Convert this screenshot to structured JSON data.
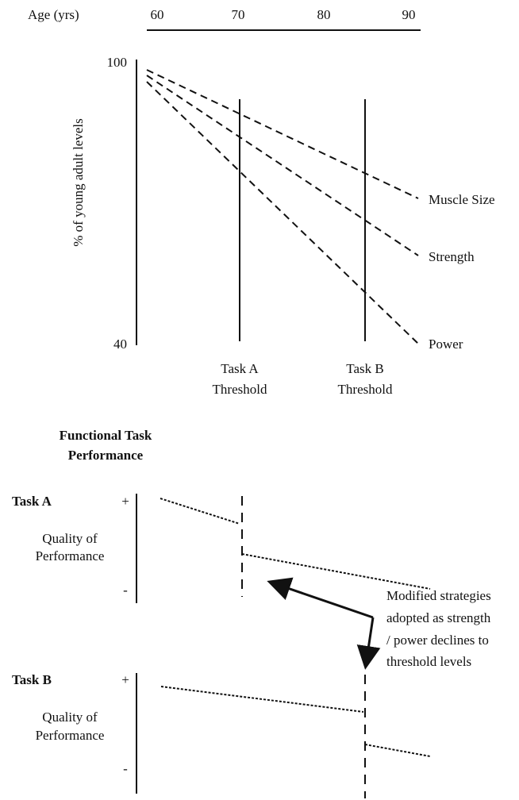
{
  "top": {
    "age_label": "Age (yrs)",
    "age_ticks": [
      "60",
      "70",
      "80",
      "90"
    ],
    "y_top": "100",
    "y_bottom": "40",
    "y_label": "% of young adult levels",
    "series": [
      "Muscle Size",
      "Strength",
      "Power"
    ],
    "thresholds": [
      [
        "Task A",
        "Threshold"
      ],
      [
        "Task B",
        "Threshold"
      ]
    ]
  },
  "section_title": [
    "Functional Task",
    "Performance"
  ],
  "tasks": [
    {
      "name": "Task A",
      "plus": "+",
      "minus": "-",
      "axis": [
        "Quality of",
        "Performance"
      ]
    },
    {
      "name": "Task B",
      "plus": "+",
      "minus": "-",
      "axis": [
        "Quality of",
        "Performance"
      ]
    }
  ],
  "note": [
    "Modified strategies",
    "adopted as strength",
    "/ power declines to",
    "threshold levels"
  ]
}
